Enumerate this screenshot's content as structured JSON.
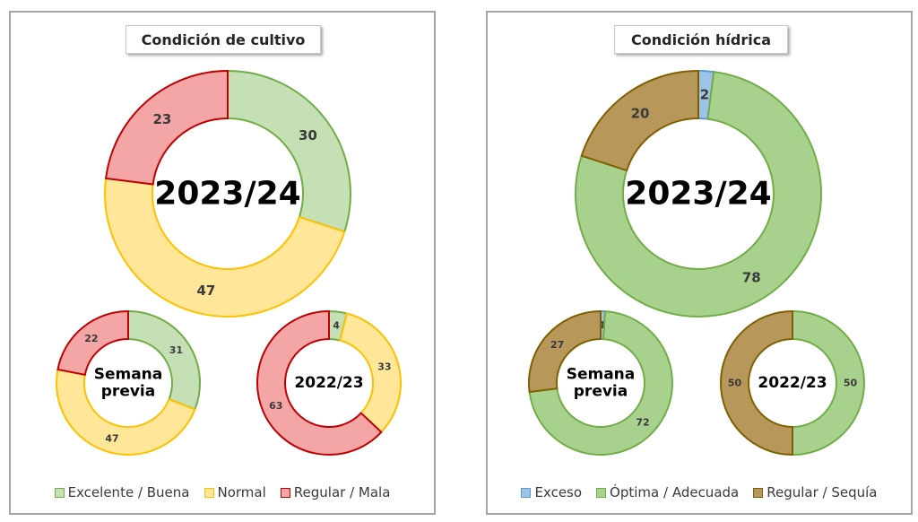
{
  "panels": [
    {
      "title": "Condición  de cultivo",
      "legend": [
        {
          "label": "Excelente / Buena",
          "fill": "#c5e0b4",
          "stroke": "#70ad47"
        },
        {
          "label": "Normal",
          "fill": "#ffe699",
          "stroke": "#ffc000"
        },
        {
          "label": "Regular / Mala",
          "fill": "#f4a6a6",
          "stroke": "#c00000"
        }
      ]
    },
    {
      "title": "Condición  hídrica",
      "legend": [
        {
          "label": "Exceso",
          "fill": "#9dc3e6",
          "stroke": "#5b9bd5"
        },
        {
          "label": "Óptima / Adecuada",
          "fill": "#a9d18e",
          "stroke": "#70ad47"
        },
        {
          "label": "Regular / Sequía",
          "fill": "#b8975a",
          "stroke": "#7f6000"
        }
      ]
    }
  ],
  "chart_data": [
    {
      "type": "pie",
      "title": "Condición  de cultivo",
      "categories": [
        "Excelente / Buena",
        "Normal",
        "Regular / Mala"
      ],
      "colors": {
        "fill": [
          "#c5e0b4",
          "#ffe699",
          "#f4a6a6"
        ],
        "stroke": [
          "#70ad47",
          "#ffc000",
          "#c00000"
        ]
      },
      "series": [
        {
          "name": "2023/24",
          "values": [
            30,
            47,
            23
          ]
        },
        {
          "name": "Semana previa",
          "values": [
            31,
            47,
            22
          ]
        },
        {
          "name": "2022/23",
          "values": [
            4,
            33,
            63
          ]
        }
      ]
    },
    {
      "type": "pie",
      "title": "Condición  hídrica",
      "categories": [
        "Exceso",
        "Óptima / Adecuada",
        "Regular / Sequía"
      ],
      "colors": {
        "fill": [
          "#9dc3e6",
          "#a9d18e",
          "#b8975a"
        ],
        "stroke": [
          "#5b9bd5",
          "#70ad47",
          "#7f6000"
        ]
      },
      "series": [
        {
          "name": "2023/24",
          "values": [
            2,
            78,
            20
          ]
        },
        {
          "name": "Semana previa",
          "values": [
            1,
            72,
            27
          ]
        },
        {
          "name": "2022/23",
          "values": [
            0,
            50,
            50
          ]
        }
      ]
    }
  ]
}
